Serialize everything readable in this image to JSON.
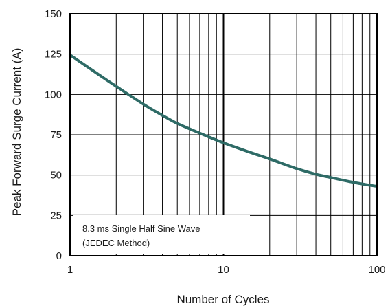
{
  "chart_data": {
    "type": "line",
    "xlabel": "Number of Cycles",
    "ylabel": "Peak Forward Surge Current (A)",
    "x_scale": "log",
    "xlim": [
      1,
      100
    ],
    "ylim": [
      0,
      150
    ],
    "x_ticks": [
      1,
      10,
      100
    ],
    "y_ticks": [
      0,
      25,
      50,
      75,
      100,
      125,
      150
    ],
    "grid": true,
    "annotation": [
      "8.3 ms Single Half Sine Wave",
      "(JEDEC Method)"
    ],
    "series": [
      {
        "color": "#2e6b66",
        "x": [
          1,
          1.5,
          2,
          3,
          4,
          5,
          7,
          10,
          15,
          20,
          30,
          40,
          50,
          70,
          100
        ],
        "y": [
          124.5,
          113,
          105,
          94,
          87,
          82,
          76,
          70,
          64,
          60,
          54,
          50.5,
          48.5,
          45.5,
          43
        ]
      }
    ]
  }
}
